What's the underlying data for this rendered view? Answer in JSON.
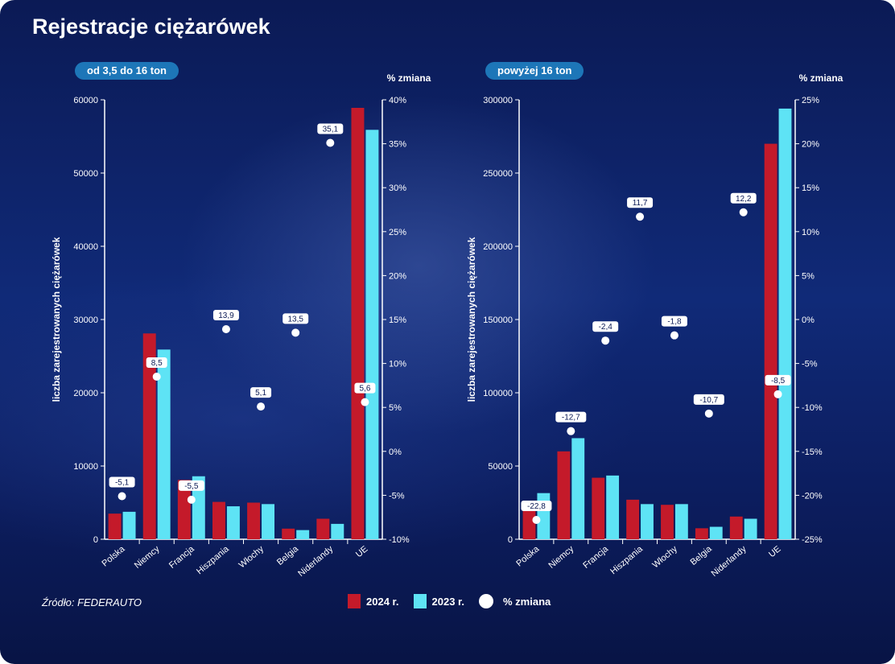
{
  "title": "Rejestracje ciężarówek",
  "source": "Źródło:  FEDERAUTO",
  "legend": {
    "series1": "2024 r.",
    "series2": "2023 r.",
    "change": "% zmiana"
  },
  "colors": {
    "series_2024": "#c41a2a",
    "series_2023": "#5ee3f5",
    "change_marker": "#ffffff",
    "pill": "#1d76b8"
  },
  "chart_data": [
    {
      "type": "bar",
      "panel_label": "od 3,5 do 16 ton",
      "ylabel": "liczba zarejestrowanych ciężarówek",
      "y2label": "% zmiana",
      "ylim": [
        0,
        60000
      ],
      "yticks": [
        "0",
        "10000",
        "20000",
        "30000",
        "40000",
        "50000",
        "60000"
      ],
      "y2lim": [
        -10,
        40
      ],
      "y2ticks": [
        "-10%",
        "-5%",
        "0%",
        "5%",
        "10%",
        "15%",
        "20%",
        "25%",
        "30%",
        "35%",
        "40%"
      ],
      "categories": [
        "Polska",
        "Niemcy",
        "Francja",
        "Hiszpania",
        "Włochy",
        "Belgia",
        "Niderlandy",
        "UE"
      ],
      "series": [
        {
          "name": "2024 r.",
          "values": [
            3500,
            28100,
            8100,
            5100,
            5000,
            1450,
            2800,
            58900
          ]
        },
        {
          "name": "2023 r.",
          "values": [
            3750,
            25900,
            8600,
            4500,
            4800,
            1250,
            2100,
            55900
          ]
        }
      ],
      "change": {
        "name": "% zmiana",
        "values": [
          -5.1,
          8.5,
          -5.5,
          13.9,
          5.1,
          13.5,
          35.1,
          5.6
        ],
        "labels": [
          "-5,1",
          "8,5",
          "-5,5",
          "13,9",
          "5,1",
          "13,5",
          "35,1",
          "5,6"
        ]
      },
      "grid": false
    },
    {
      "type": "bar",
      "panel_label": "powyżej 16 ton",
      "ylabel": "liczba zarejestrowanych ciężarówek",
      "y2label": "% zmiana",
      "ylim": [
        0,
        300000
      ],
      "yticks": [
        "0",
        "50000",
        "100000",
        "150000",
        "200000",
        "250000",
        "300000"
      ],
      "y2lim": [
        -25,
        25
      ],
      "y2ticks": [
        "-25%",
        "-20%",
        "-15%",
        "-10%",
        "-5%",
        "0%",
        "5%",
        "10%",
        "15%",
        "20%",
        "25%"
      ],
      "categories": [
        "Polska",
        "Niemcy",
        "Francja",
        "Hiszpania",
        "Włochy",
        "Belgia",
        "Niderlandy",
        "UE"
      ],
      "series": [
        {
          "name": "2024 r.",
          "values": [
            24000,
            60000,
            42000,
            27000,
            23500,
            7500,
            15500,
            270000
          ]
        },
        {
          "name": "2023 r.",
          "values": [
            31500,
            69000,
            43500,
            24000,
            24000,
            8500,
            14000,
            294000
          ]
        }
      ],
      "change": {
        "name": "% zmiana",
        "values": [
          -22.8,
          -12.7,
          -2.4,
          11.7,
          -1.8,
          -10.7,
          12.2,
          -8.5
        ],
        "labels": [
          "-22,8",
          "-12,7",
          "-2,4",
          "11,7",
          "-1,8",
          "-10,7",
          "12,2",
          "-8,5"
        ]
      },
      "grid": false
    }
  ]
}
